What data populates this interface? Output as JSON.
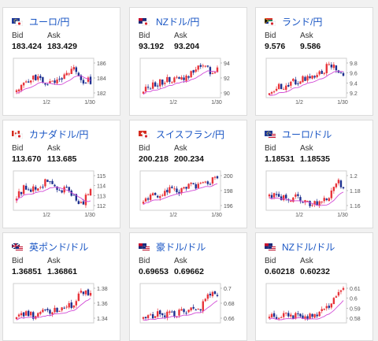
{
  "labels": {
    "bid": "Bid",
    "ask": "Ask"
  },
  "colors": {
    "title": "#1a56c4",
    "up": "#e8333a",
    "down": "#1d2f8f",
    "ma": "#d24ad6",
    "axis": "#555555"
  },
  "cards": [
    {
      "id": "eur-jpy",
      "title": "ユーロ/円",
      "flag": "eu-jp",
      "bid": "183.424",
      "ask": "183.429",
      "y_ticks": [
        "186",
        "184",
        "182"
      ],
      "x_ticks": [
        "1/2",
        "1/30"
      ]
    },
    {
      "id": "nzd-jpy",
      "title": "NZドル/円",
      "flag": "nz-jp",
      "bid": "93.192",
      "ask": "93.204",
      "y_ticks": [
        "94",
        "92",
        "90"
      ],
      "x_ticks": [
        "1/2",
        "1/30"
      ]
    },
    {
      "id": "zar-jpy",
      "title": "ランド/円",
      "flag": "za-jp",
      "bid": "9.576",
      "ask": "9.586",
      "y_ticks": [
        "9.8",
        "9.6",
        "9.4",
        "9.2"
      ],
      "x_ticks": [
        "1/2",
        "1/30"
      ]
    },
    {
      "id": "cad-jpy",
      "title": "カナダドル/円",
      "flag": "ca-jp",
      "bid": "113.670",
      "ask": "113.685",
      "y_ticks": [
        "115",
        "114",
        "113",
        "112"
      ],
      "x_ticks": [
        "1/2",
        "1/30"
      ]
    },
    {
      "id": "chf-jpy",
      "title": "スイスフラン/円",
      "flag": "ch-jp",
      "bid": "200.218",
      "ask": "200.234",
      "y_ticks": [
        "200",
        "198",
        "196"
      ],
      "x_ticks": [
        "1/2",
        "1/30"
      ]
    },
    {
      "id": "eur-usd",
      "title": "ユーロ/ドル",
      "flag": "eu-us",
      "bid": "1.18531",
      "ask": "1.18535",
      "y_ticks": [
        "1.2",
        "1.18",
        "1.16"
      ],
      "x_ticks": [
        "1/2",
        "1/30"
      ]
    },
    {
      "id": "gbp-usd",
      "title": "英ポンド/ドル",
      "flag": "gb-us",
      "bid": "1.36851",
      "ask": "1.36861",
      "y_ticks": [
        "1.38",
        "1.36",
        "1.34"
      ],
      "x_ticks": []
    },
    {
      "id": "aud-usd",
      "title": "豪ドル/ドル",
      "flag": "au-us",
      "bid": "0.69653",
      "ask": "0.69662",
      "y_ticks": [
        "0.7",
        "0.68",
        "0.66"
      ],
      "x_ticks": []
    },
    {
      "id": "nzd-usd",
      "title": "NZドル/ドル",
      "flag": "nz-us",
      "bid": "0.60218",
      "ask": "0.60232",
      "y_ticks": [
        "0.61",
        "0.6",
        "0.59",
        "0.58"
      ],
      "x_ticks": []
    }
  ]
}
